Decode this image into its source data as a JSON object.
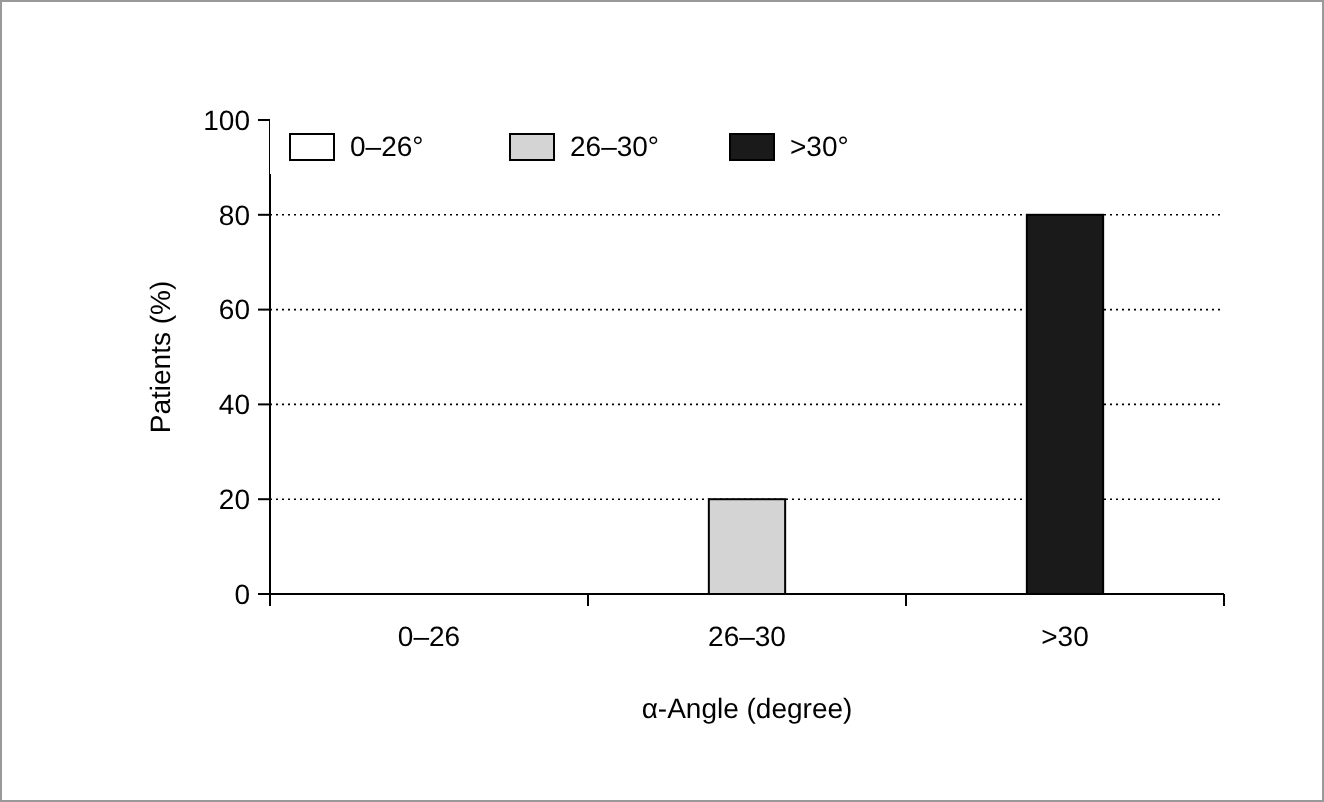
{
  "chart_data": {
    "type": "bar",
    "xlabel": "α-Angle (degree)",
    "ylabel": "Patients (%)",
    "categories": [
      "0–26",
      "26–30",
      ">30"
    ],
    "series": [
      {
        "name": "0–26°",
        "color": "#ffffff",
        "values": [
          0,
          null,
          null
        ]
      },
      {
        "name": "26–30°",
        "color": "#d4d4d4",
        "values": [
          null,
          20,
          null
        ]
      },
      {
        "name": ">30°",
        "color": "#1a1a1a",
        "values": [
          null,
          null,
          80
        ]
      }
    ],
    "ylim": [
      0,
      100
    ],
    "yticks": [
      0,
      20,
      40,
      60,
      80,
      100
    ],
    "grid": "y",
    "legend": "top left"
  }
}
